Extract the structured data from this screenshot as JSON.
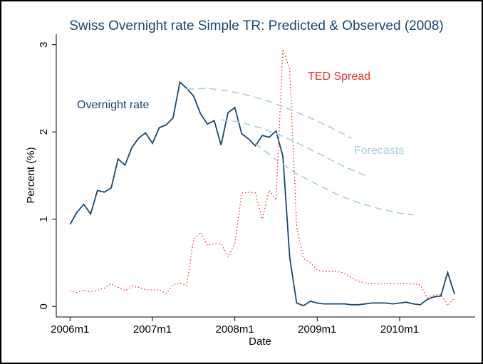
{
  "chart_data": {
    "type": "line",
    "title": "Swiss Overnight rate Simple TR: Predicted & Observed (2008)",
    "x_label": "Date",
    "y_label": "Percent (%)",
    "xlim": [
      "2005m11",
      "2010m12"
    ],
    "xticks": [
      "2006m1",
      "2007m1",
      "2008m1",
      "2009m1",
      "2010m1"
    ],
    "ylim": [
      -0.12,
      3.12
    ],
    "yticks": [
      0,
      1,
      2,
      3
    ],
    "series": [
      {
        "name": "Overnight rate",
        "color": "#1a476f",
        "dash": "solid",
        "x": [
          "2006m1",
          "2006m2",
          "2006m3",
          "2006m4",
          "2006m5",
          "2006m6",
          "2006m7",
          "2006m8",
          "2006m9",
          "2006m10",
          "2006m11",
          "2006m12",
          "2007m1",
          "2007m2",
          "2007m3",
          "2007m4",
          "2007m5",
          "2007m6",
          "2007m7",
          "2007m8",
          "2007m9",
          "2007m10",
          "2007m11",
          "2007m12",
          "2008m1",
          "2008m2",
          "2008m3",
          "2008m4",
          "2008m5",
          "2008m6",
          "2008m7",
          "2008m8",
          "2008m9",
          "2008m10",
          "2008m11",
          "2008m12",
          "2009m1",
          "2009m2",
          "2009m3",
          "2009m4",
          "2009m5",
          "2009m6",
          "2009m7",
          "2009m8",
          "2009m9",
          "2009m10",
          "2009m11",
          "2009m12",
          "2010m1",
          "2010m2",
          "2010m3",
          "2010m4",
          "2010m5",
          "2010m6",
          "2010m7",
          "2010m8",
          "2010m9"
        ],
        "values": [
          0.94,
          1.08,
          1.17,
          1.06,
          1.33,
          1.31,
          1.36,
          1.69,
          1.62,
          1.82,
          1.93,
          1.99,
          1.87,
          2.05,
          2.08,
          2.16,
          2.57,
          2.5,
          2.41,
          2.21,
          2.09,
          2.13,
          1.85,
          2.22,
          2.28,
          1.98,
          1.92,
          1.84,
          1.96,
          1.94,
          2.01,
          1.72,
          0.56,
          0.04,
          0.01,
          0.06,
          0.04,
          0.03,
          0.03,
          0.03,
          0.03,
          0.02,
          0.02,
          0.03,
          0.04,
          0.04,
          0.04,
          0.03,
          0.04,
          0.05,
          0.03,
          0.02,
          0.08,
          0.11,
          0.12,
          0.39,
          0.14
        ]
      },
      {
        "name": "TED Spread",
        "color": "#e8312c",
        "dash": "dotted",
        "x": [
          "2006m1",
          "2006m2",
          "2006m3",
          "2006m4",
          "2006m5",
          "2006m6",
          "2006m7",
          "2006m8",
          "2006m9",
          "2006m10",
          "2006m11",
          "2006m12",
          "2007m1",
          "2007m2",
          "2007m3",
          "2007m4",
          "2007m5",
          "2007m6",
          "2007m7",
          "2007m8",
          "2007m9",
          "2007m10",
          "2007m11",
          "2007m12",
          "2008m1",
          "2008m2",
          "2008m3",
          "2008m4",
          "2008m5",
          "2008m6",
          "2008m7",
          "2008m8",
          "2008m9",
          "2008m10",
          "2008m11",
          "2008m12",
          "2009m1",
          "2009m2",
          "2009m3",
          "2009m4",
          "2009m5",
          "2009m6",
          "2009m7",
          "2009m8",
          "2009m9",
          "2009m10",
          "2009m11",
          "2009m12",
          "2010m1",
          "2010m2",
          "2010m3",
          "2010m4",
          "2010m5",
          "2010m6",
          "2010m7",
          "2010m8",
          "2010m9"
        ],
        "values": [
          0.18,
          0.16,
          0.19,
          0.17,
          0.19,
          0.21,
          0.26,
          0.22,
          0.18,
          0.23,
          0.22,
          0.19,
          0.19,
          0.19,
          0.15,
          0.25,
          0.27,
          0.24,
          0.77,
          0.85,
          0.7,
          0.72,
          0.72,
          0.57,
          0.72,
          1.3,
          1.31,
          1.3,
          1.0,
          1.33,
          1.22,
          2.95,
          2.72,
          0.92,
          0.55,
          0.5,
          0.42,
          0.4,
          0.4,
          0.4,
          0.38,
          0.33,
          0.29,
          0.27,
          0.26,
          0.26,
          0.26,
          0.26,
          0.26,
          0.26,
          0.26,
          0.25,
          0.1,
          0.13,
          0.14,
          0.01,
          0.1
        ]
      },
      {
        "name": "Forecasts",
        "color": "#a6cee3",
        "dash": "dashed",
        "lines": [
          {
            "x": [
              "2007m6",
              "2007m9",
              "2007m12",
              "2008m3",
              "2008m6",
              "2008m9",
              "2008m12",
              "2009m3",
              "2009m6"
            ],
            "values": [
              2.49,
              2.5,
              2.47,
              2.42,
              2.35,
              2.26,
              2.16,
              2.05,
              1.93
            ]
          },
          {
            "x": [
              "2007m11",
              "2008m2",
              "2008m5",
              "2008m8",
              "2008m11",
              "2009m2",
              "2009m5",
              "2009m8"
            ],
            "values": [
              2.14,
              2.11,
              2.04,
              1.95,
              1.84,
              1.72,
              1.6,
              1.5
            ]
          },
          {
            "x": [
              "2008m4",
              "2008m7",
              "2008m10",
              "2009m1",
              "2009m4",
              "2009m7",
              "2009m10",
              "2010m1",
              "2010m3"
            ],
            "values": [
              1.87,
              1.68,
              1.52,
              1.4,
              1.28,
              1.19,
              1.12,
              1.07,
              1.05
            ]
          }
        ]
      }
    ]
  }
}
